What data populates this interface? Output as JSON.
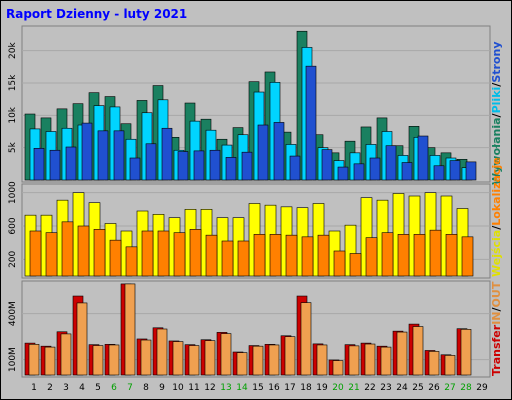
{
  "title": "Raport Dzienny -  luty 2021",
  "colors": {
    "background": "#c0c0c0",
    "title": "#0000ff",
    "visits": "#1a8060",
    "pages": "#2050d0",
    "files": "#00d4ff",
    "sites": "#ff8000",
    "kbytes": "#ffff00",
    "in": "#cc0000",
    "out": "#f0a050",
    "weekend": "#00a000",
    "day": "#000000"
  },
  "side_labels": {
    "top": [
      {
        "text": "Wywołania",
        "color": "#1a8060"
      },
      {
        "text": "/",
        "color": "#000000"
      },
      {
        "text": "Pliki",
        "color": "#00bde8"
      },
      {
        "text": "/",
        "color": "#000000"
      },
      {
        "text": "Strony",
        "color": "#2050d0"
      }
    ],
    "middle": [
      {
        "text": "Wejścia",
        "color": "#e0e000"
      },
      {
        "text": "/",
        "color": "#000000"
      },
      {
        "text": "Lokalizacje",
        "color": "#ff8000"
      }
    ],
    "bottom": [
      {
        "text": "Transfer",
        "color": "#cc0000"
      },
      {
        "text": "IN",
        "color": "#e09040"
      },
      {
        "text": "/",
        "color": "#000000"
      },
      {
        "text": "OUT",
        "color": "#e09040"
      }
    ]
  },
  "chart_data": [
    {
      "type": "bar",
      "panel": "hits-files-pages",
      "categories": [
        "1",
        "2",
        "3",
        "4",
        "5",
        "6",
        "7",
        "8",
        "9",
        "10",
        "11",
        "12",
        "13",
        "14",
        "15",
        "16",
        "17",
        "18",
        "19",
        "20",
        "21",
        "22",
        "23",
        "24",
        "25",
        "26",
        "27",
        "28",
        "29"
      ],
      "ylim": [
        0,
        23500
      ],
      "yticks": [
        {
          "value": 5000,
          "label": "5k"
        },
        {
          "value": 10000,
          "label": "10k"
        },
        {
          "value": 15000,
          "label": "15k"
        },
        {
          "value": 20000,
          "label": "20k"
        }
      ],
      "series": [
        {
          "name": "Wywołania",
          "values": [
            10200,
            9600,
            11000,
            11800,
            13500,
            12900,
            8700,
            12300,
            14600,
            6600,
            11900,
            9400,
            6300,
            8100,
            15200,
            16700,
            7400,
            23000,
            7000,
            4200,
            6000,
            8200,
            9600,
            5300,
            8300,
            5000,
            4200,
            3200,
            0
          ]
        },
        {
          "name": "Pliki",
          "values": [
            7900,
            7500,
            8000,
            8500,
            11500,
            11300,
            6300,
            10400,
            12400,
            4600,
            9100,
            7700,
            5400,
            7000,
            13600,
            15100,
            5500,
            20500,
            5000,
            3000,
            4200,
            5500,
            7500,
            3800,
            6600,
            3800,
            3400,
            1900,
            0
          ]
        },
        {
          "name": "Strony",
          "values": [
            4900,
            4600,
            5100,
            8800,
            7600,
            7600,
            3400,
            5600,
            8000,
            4400,
            4500,
            4600,
            3500,
            4300,
            8500,
            8900,
            3700,
            17600,
            4700,
            2000,
            2500,
            3400,
            5300,
            2700,
            6800,
            2200,
            3000,
            2800,
            0
          ]
        }
      ]
    },
    {
      "type": "bar",
      "panel": "visits-sites",
      "categories": [
        "1",
        "2",
        "3",
        "4",
        "5",
        "6",
        "7",
        "8",
        "9",
        "10",
        "11",
        "12",
        "13",
        "14",
        "15",
        "16",
        "17",
        "18",
        "19",
        "20",
        "21",
        "22",
        "23",
        "24",
        "25",
        "26",
        "27",
        "28",
        "29"
      ],
      "ylim": [
        0,
        1080
      ],
      "yticks": [
        {
          "value": 200,
          "label": "200"
        },
        {
          "value": 600,
          "label": "600"
        },
        {
          "value": 1000,
          "label": "1000"
        }
      ],
      "series": [
        {
          "name": "Wejścia",
          "values": [
            730,
            730,
            910,
            1000,
            880,
            630,
            540,
            780,
            740,
            700,
            800,
            800,
            700,
            700,
            870,
            850,
            830,
            820,
            870,
            540,
            610,
            940,
            910,
            990,
            960,
            1000,
            960,
            810,
            0
          ]
        },
        {
          "name": "Lokalizacje",
          "values": [
            540,
            520,
            650,
            600,
            560,
            430,
            350,
            540,
            540,
            520,
            560,
            490,
            420,
            420,
            500,
            500,
            490,
            470,
            490,
            300,
            270,
            460,
            520,
            500,
            500,
            550,
            500,
            470,
            0
          ]
        }
      ]
    },
    {
      "type": "bar",
      "panel": "transfer",
      "categories": [
        "1",
        "2",
        "3",
        "4",
        "5",
        "6",
        "7",
        "8",
        "9",
        "10",
        "11",
        "12",
        "13",
        "14",
        "15",
        "16",
        "17",
        "18",
        "19",
        "20",
        "21",
        "22",
        "23",
        "24",
        "25",
        "26",
        "27",
        "28",
        "29"
      ],
      "ylim": [
        0,
        600
      ],
      "yticks": [
        {
          "value": 100,
          "label": "100M"
        },
        {
          "value": 400,
          "label": "400M"
        }
      ],
      "series": [
        {
          "name": "IN",
          "values": [
            208,
            188,
            282,
            515,
            198,
            200,
            594,
            235,
            308,
            222,
            198,
            230,
            278,
            150,
            192,
            200,
            256,
            515,
            203,
            98,
            198,
            208,
            188,
            286,
            332,
            160,
            132,
            302,
            0
          ]
        },
        {
          "name": "OUT",
          "values": [
            200,
            182,
            268,
            470,
            192,
            196,
            594,
            228,
            300,
            218,
            192,
            224,
            270,
            146,
            188,
            196,
            250,
            472,
            196,
            94,
            190,
            202,
            182,
            280,
            316,
            154,
            128,
            298,
            0
          ]
        }
      ]
    }
  ]
}
